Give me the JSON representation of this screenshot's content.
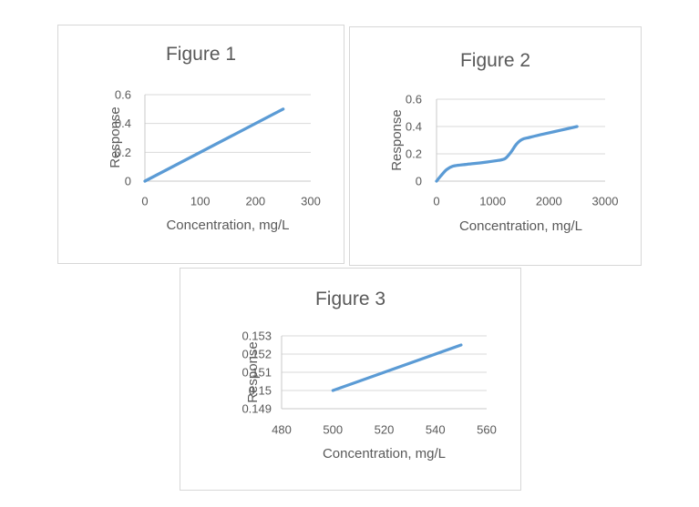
{
  "colors": {
    "series_line": "#5b9bd5",
    "gridline": "#d9d9d9",
    "axis_line": "#c9c9c9",
    "text": "#595959",
    "panel_border": "#d7d7d7",
    "background": "#ffffff"
  },
  "chart_data": [
    {
      "type": "line",
      "title": "Figure 1",
      "xlabel": "Concentration, mg/L",
      "ylabel": "Response",
      "xlim": [
        0,
        300
      ],
      "ylim": [
        0,
        0.6
      ],
      "x_ticks": [
        0,
        100,
        200,
        300
      ],
      "x_tick_labels": [
        "0",
        "100",
        "200",
        "300"
      ],
      "y_ticks": [
        0,
        0.2,
        0.4,
        0.6
      ],
      "y_tick_labels": [
        "0",
        "0.2",
        "0.4",
        "0.6"
      ],
      "grid": true,
      "legend": false,
      "smooth": false,
      "x": [
        0,
        250
      ],
      "y": [
        0,
        0.5
      ]
    },
    {
      "type": "line",
      "title": "Figure 2",
      "xlabel": "Concentration, mg/L",
      "ylabel": "Response",
      "xlim": [
        0,
        3000
      ],
      "ylim": [
        0,
        0.6
      ],
      "x_ticks": [
        0,
        1000,
        2000,
        3000
      ],
      "x_tick_labels": [
        "0",
        "1000",
        "2000",
        "3000"
      ],
      "y_ticks": [
        0,
        0.2,
        0.4,
        0.6
      ],
      "y_tick_labels": [
        "0",
        "0.2",
        "0.4",
        "0.6"
      ],
      "grid": true,
      "legend": false,
      "smooth": true,
      "x": [
        0,
        80,
        180,
        280,
        420,
        650,
        900,
        1100,
        1220,
        1320,
        1420,
        1520,
        1650,
        1900,
        2200,
        2500
      ],
      "y": [
        0,
        0.04,
        0.085,
        0.108,
        0.118,
        0.128,
        0.14,
        0.152,
        0.165,
        0.21,
        0.27,
        0.305,
        0.32,
        0.345,
        0.372,
        0.4
      ]
    },
    {
      "type": "line",
      "title": "Figure 3",
      "xlabel": "Concentration, mg/L",
      "ylabel": "Response",
      "xlim": [
        480,
        560
      ],
      "ylim": [
        0.149,
        0.153
      ],
      "x_ticks": [
        480,
        500,
        520,
        540,
        560
      ],
      "x_tick_labels": [
        "480",
        "500",
        "520",
        "540",
        "560"
      ],
      "y_ticks": [
        0.149,
        0.15,
        0.151,
        0.152,
        0.153
      ],
      "y_tick_labels": [
        "0.149",
        "0.15",
        "0.151",
        "0.152",
        "0.153"
      ],
      "grid": true,
      "legend": false,
      "smooth": false,
      "x": [
        500,
        550
      ],
      "y": [
        0.15,
        0.1525
      ]
    }
  ]
}
